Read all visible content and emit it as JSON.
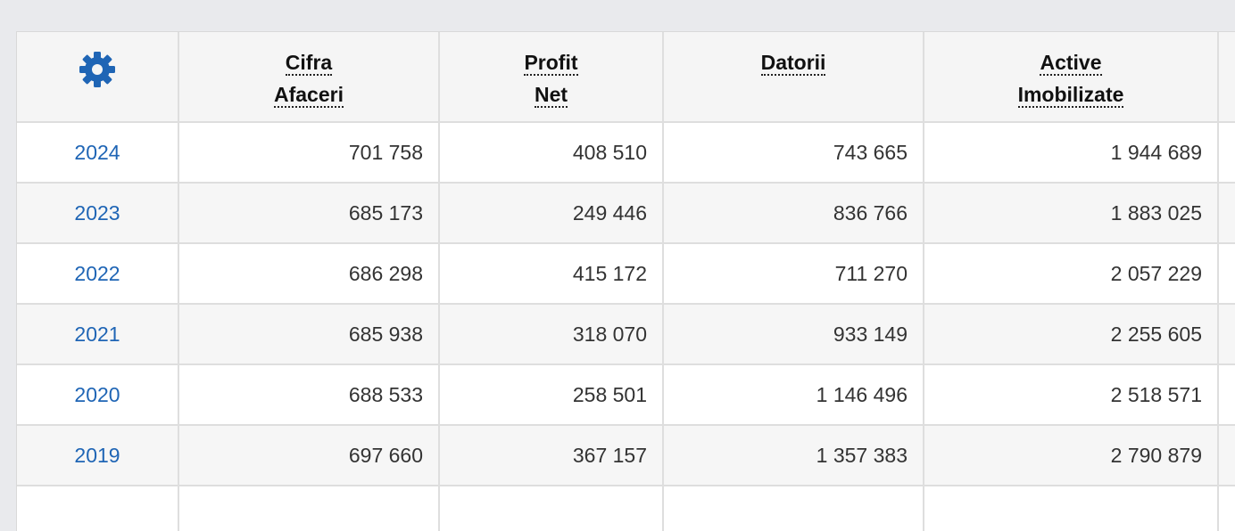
{
  "header": {
    "settings_icon": "gear-icon",
    "col1": [
      "Cifra",
      "Afaceri"
    ],
    "col2": [
      "Profit",
      "Net"
    ],
    "col3": [
      "Datorii"
    ],
    "col4": [
      "Active",
      "Imobilizate"
    ]
  },
  "colors": {
    "accent": "#1f65b5",
    "header_bg": "#f5f5f5",
    "page_bg": "#e9eaed"
  },
  "rows": [
    {
      "year": "2024",
      "cifra": "701 758",
      "profit": "408 510",
      "datorii": "743 665",
      "active": "1 944 689"
    },
    {
      "year": "2023",
      "cifra": "685 173",
      "profit": "249 446",
      "datorii": "836 766",
      "active": "1 883 025"
    },
    {
      "year": "2022",
      "cifra": "686 298",
      "profit": "415 172",
      "datorii": "711 270",
      "active": "2 057 229"
    },
    {
      "year": "2021",
      "cifra": "685 938",
      "profit": "318 070",
      "datorii": "933 149",
      "active": "2 255 605"
    },
    {
      "year": "2020",
      "cifra": "688 533",
      "profit": "258 501",
      "datorii": "1 146 496",
      "active": "2 518 571"
    },
    {
      "year": "2019",
      "cifra": "697 660",
      "profit": "367 157",
      "datorii": "1 357 383",
      "active": "2 790 879"
    }
  ]
}
